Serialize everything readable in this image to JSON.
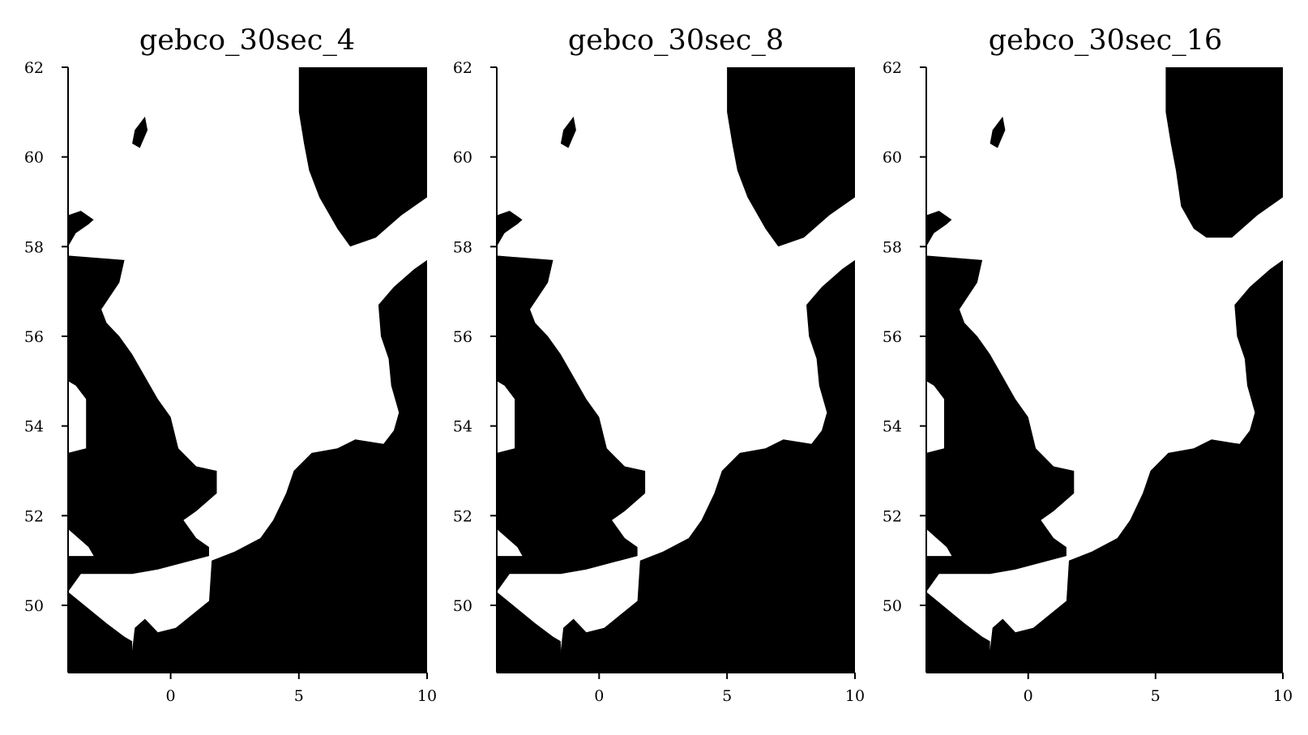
{
  "chart_data": [
    {
      "type": "heatmap",
      "title": "gebco_30sec_4",
      "xlim": [
        -4,
        10
      ],
      "ylim": [
        48.5,
        62
      ],
      "xticks": [
        "0",
        "5",
        "10"
      ],
      "yticks": [
        "50",
        "52",
        "54",
        "56",
        "58",
        "60",
        "62"
      ],
      "grid": false,
      "colors": {
        "land": "#000000",
        "sea": "#ffffff"
      },
      "land_polygons": [
        [
          [
            -4,
            48.5
          ],
          [
            -4,
            50.3
          ],
          [
            -3.5,
            50.7
          ],
          [
            -1.5,
            50.7
          ],
          [
            -0.5,
            50.8
          ],
          [
            1.5,
            51.1
          ],
          [
            1.5,
            51.3
          ],
          [
            1.0,
            51.5
          ],
          [
            0.5,
            51.9
          ],
          [
            1.0,
            52.1
          ],
          [
            1.8,
            52.5
          ],
          [
            1.8,
            53.0
          ],
          [
            1.0,
            53.1
          ],
          [
            0.3,
            53.5
          ],
          [
            0,
            54.2
          ],
          [
            -0.5,
            54.6
          ],
          [
            -1.0,
            55.1
          ],
          [
            -1.5,
            55.6
          ],
          [
            -2.0,
            56.0
          ],
          [
            -2.5,
            56.3
          ],
          [
            -2.7,
            56.6
          ],
          [
            -2.0,
            57.2
          ],
          [
            -1.8,
            57.7
          ],
          [
            -4,
            57.8
          ],
          [
            -4,
            55.0
          ],
          [
            -3.7,
            54.9
          ],
          [
            -3.3,
            54.6
          ],
          [
            -3.3,
            53.5
          ],
          [
            -4,
            53.4
          ],
          [
            -4,
            51.7
          ],
          [
            -3.2,
            51.3
          ],
          [
            -3.0,
            51.1
          ],
          [
            -4,
            51.1
          ],
          [
            -4,
            50.3
          ],
          [
            -2.5,
            49.6
          ],
          [
            -1.8,
            49.3
          ],
          [
            -1.5,
            49.2
          ],
          [
            -1.5,
            48.5
          ]
        ],
        [
          [
            -4,
            58.0
          ],
          [
            -3.7,
            58.3
          ],
          [
            -3.2,
            58.5
          ],
          [
            -3.0,
            58.6
          ],
          [
            -3.5,
            58.8
          ],
          [
            -4,
            58.7
          ]
        ],
        [
          [
            -1.6,
            48.5
          ],
          [
            -1.4,
            49.5
          ],
          [
            -1.0,
            49.7
          ],
          [
            -0.5,
            49.4
          ],
          [
            0.2,
            49.5
          ],
          [
            1.5,
            50.1
          ],
          [
            1.6,
            51.0
          ],
          [
            2.5,
            51.2
          ],
          [
            3.5,
            51.5
          ],
          [
            4.0,
            51.9
          ],
          [
            4.5,
            52.5
          ],
          [
            4.8,
            53.0
          ],
          [
            5.5,
            53.4
          ],
          [
            6.5,
            53.5
          ],
          [
            7.2,
            53.7
          ],
          [
            8.3,
            53.6
          ],
          [
            8.7,
            53.9
          ],
          [
            8.9,
            54.3
          ],
          [
            8.6,
            54.9
          ],
          [
            8.5,
            55.5
          ],
          [
            8.2,
            56.0
          ],
          [
            8.1,
            56.7
          ],
          [
            8.7,
            57.1
          ],
          [
            9.5,
            57.5
          ],
          [
            10,
            57.7
          ],
          [
            10,
            48.5
          ]
        ],
        [
          [
            5.0,
            62
          ],
          [
            5.0,
            61.0
          ],
          [
            5.2,
            60.3
          ],
          [
            5.4,
            59.7
          ],
          [
            5.8,
            59.1
          ],
          [
            6.5,
            58.4
          ],
          [
            7.0,
            58.0
          ],
          [
            8.0,
            58.2
          ],
          [
            9.0,
            58.7
          ],
          [
            10,
            59.1
          ],
          [
            10,
            62
          ]
        ],
        [
          [
            -1.4,
            60.6
          ],
          [
            -1.0,
            60.9
          ],
          [
            -0.9,
            60.6
          ],
          [
            -1.2,
            60.2
          ],
          [
            -1.5,
            60.3
          ]
        ]
      ]
    },
    {
      "type": "heatmap",
      "title": "gebco_30sec_8",
      "xlim": [
        -4,
        10
      ],
      "ylim": [
        48.5,
        62
      ],
      "xticks": [
        "0",
        "5",
        "10"
      ],
      "yticks": [
        "50",
        "52",
        "54",
        "56",
        "58",
        "60",
        "62"
      ],
      "grid": false,
      "colors": {
        "land": "#000000",
        "sea": "#ffffff"
      },
      "land_polygons": [
        [
          [
            -4,
            48.5
          ],
          [
            -4,
            50.3
          ],
          [
            -3.5,
            50.7
          ],
          [
            -1.5,
            50.7
          ],
          [
            -0.5,
            50.8
          ],
          [
            1.5,
            51.1
          ],
          [
            1.5,
            51.3
          ],
          [
            1.0,
            51.5
          ],
          [
            0.5,
            51.9
          ],
          [
            1.0,
            52.1
          ],
          [
            1.8,
            52.5
          ],
          [
            1.8,
            53.0
          ],
          [
            1.0,
            53.1
          ],
          [
            0.3,
            53.5
          ],
          [
            0,
            54.2
          ],
          [
            -0.5,
            54.6
          ],
          [
            -1.0,
            55.1
          ],
          [
            -1.5,
            55.6
          ],
          [
            -2.0,
            56.0
          ],
          [
            -2.5,
            56.3
          ],
          [
            -2.7,
            56.6
          ],
          [
            -2.0,
            57.2
          ],
          [
            -1.8,
            57.7
          ],
          [
            -4,
            57.8
          ],
          [
            -4,
            55.0
          ],
          [
            -3.7,
            54.9
          ],
          [
            -3.3,
            54.6
          ],
          [
            -3.3,
            53.5
          ],
          [
            -4,
            53.4
          ],
          [
            -4,
            51.7
          ],
          [
            -3.2,
            51.3
          ],
          [
            -3.0,
            51.1
          ],
          [
            -4,
            51.1
          ],
          [
            -4,
            50.3
          ],
          [
            -2.5,
            49.6
          ],
          [
            -1.8,
            49.3
          ],
          [
            -1.5,
            49.2
          ],
          [
            -1.5,
            48.5
          ]
        ],
        [
          [
            -4,
            58.0
          ],
          [
            -3.7,
            58.3
          ],
          [
            -3.2,
            58.5
          ],
          [
            -3.0,
            58.6
          ],
          [
            -3.5,
            58.8
          ],
          [
            -4,
            58.7
          ]
        ],
        [
          [
            -1.6,
            48.5
          ],
          [
            -1.4,
            49.5
          ],
          [
            -1.0,
            49.7
          ],
          [
            -0.5,
            49.4
          ],
          [
            0.2,
            49.5
          ],
          [
            1.5,
            50.1
          ],
          [
            1.6,
            51.0
          ],
          [
            2.5,
            51.2
          ],
          [
            3.5,
            51.5
          ],
          [
            4.0,
            51.9
          ],
          [
            4.5,
            52.5
          ],
          [
            4.8,
            53.0
          ],
          [
            5.5,
            53.4
          ],
          [
            6.5,
            53.5
          ],
          [
            7.2,
            53.7
          ],
          [
            8.3,
            53.6
          ],
          [
            8.7,
            53.9
          ],
          [
            8.9,
            54.3
          ],
          [
            8.6,
            54.9
          ],
          [
            8.5,
            55.5
          ],
          [
            8.2,
            56.0
          ],
          [
            8.1,
            56.7
          ],
          [
            8.7,
            57.1
          ],
          [
            9.5,
            57.5
          ],
          [
            10,
            57.7
          ],
          [
            10,
            48.5
          ]
        ],
        [
          [
            5.0,
            62
          ],
          [
            5.0,
            61.0
          ],
          [
            5.2,
            60.3
          ],
          [
            5.4,
            59.7
          ],
          [
            5.8,
            59.1
          ],
          [
            6.5,
            58.4
          ],
          [
            7.0,
            58.0
          ],
          [
            8.0,
            58.2
          ],
          [
            9.0,
            58.7
          ],
          [
            10,
            59.1
          ],
          [
            10,
            62
          ]
        ],
        [
          [
            -1.4,
            60.6
          ],
          [
            -1.0,
            60.9
          ],
          [
            -0.9,
            60.6
          ],
          [
            -1.2,
            60.2
          ],
          [
            -1.5,
            60.3
          ]
        ]
      ]
    },
    {
      "type": "heatmap",
      "title": "gebco_30sec_16",
      "xlim": [
        -4,
        10
      ],
      "ylim": [
        48.5,
        62
      ],
      "xticks": [
        "0",
        "5",
        "10"
      ],
      "yticks": [
        "50",
        "52",
        "54",
        "56",
        "58",
        "60",
        "62"
      ],
      "grid": false,
      "colors": {
        "land": "#000000",
        "sea": "#ffffff"
      },
      "land_polygons": [
        [
          [
            -4,
            48.5
          ],
          [
            -4,
            50.3
          ],
          [
            -3.5,
            50.7
          ],
          [
            -1.5,
            50.7
          ],
          [
            -0.5,
            50.8
          ],
          [
            1.5,
            51.1
          ],
          [
            1.5,
            51.3
          ],
          [
            1.0,
            51.5
          ],
          [
            0.5,
            51.9
          ],
          [
            1.0,
            52.1
          ],
          [
            1.8,
            52.5
          ],
          [
            1.8,
            53.0
          ],
          [
            1.0,
            53.1
          ],
          [
            0.3,
            53.5
          ],
          [
            0,
            54.2
          ],
          [
            -0.5,
            54.6
          ],
          [
            -1.0,
            55.1
          ],
          [
            -1.5,
            55.6
          ],
          [
            -2.0,
            56.0
          ],
          [
            -2.5,
            56.3
          ],
          [
            -2.7,
            56.6
          ],
          [
            -2.0,
            57.2
          ],
          [
            -1.8,
            57.7
          ],
          [
            -4,
            57.8
          ],
          [
            -4,
            55.0
          ],
          [
            -3.7,
            54.9
          ],
          [
            -3.3,
            54.6
          ],
          [
            -3.3,
            53.5
          ],
          [
            -4,
            53.4
          ],
          [
            -4,
            51.7
          ],
          [
            -3.2,
            51.3
          ],
          [
            -3.0,
            51.1
          ],
          [
            -4,
            51.1
          ],
          [
            -4,
            50.3
          ],
          [
            -2.5,
            49.6
          ],
          [
            -1.8,
            49.3
          ],
          [
            -1.5,
            49.2
          ],
          [
            -1.5,
            48.5
          ]
        ],
        [
          [
            -4,
            58.0
          ],
          [
            -3.7,
            58.3
          ],
          [
            -3.2,
            58.5
          ],
          [
            -3.0,
            58.6
          ],
          [
            -3.5,
            58.8
          ],
          [
            -4,
            58.7
          ]
        ],
        [
          [
            -1.6,
            48.5
          ],
          [
            -1.4,
            49.5
          ],
          [
            -1.0,
            49.7
          ],
          [
            -0.5,
            49.4
          ],
          [
            0.2,
            49.5
          ],
          [
            1.5,
            50.1
          ],
          [
            1.6,
            51.0
          ],
          [
            2.5,
            51.2
          ],
          [
            3.5,
            51.5
          ],
          [
            4.0,
            51.9
          ],
          [
            4.5,
            52.5
          ],
          [
            4.8,
            53.0
          ],
          [
            5.5,
            53.4
          ],
          [
            6.5,
            53.5
          ],
          [
            7.2,
            53.7
          ],
          [
            8.3,
            53.6
          ],
          [
            8.7,
            53.9
          ],
          [
            8.9,
            54.3
          ],
          [
            8.6,
            54.9
          ],
          [
            8.5,
            55.5
          ],
          [
            8.2,
            56.0
          ],
          [
            8.1,
            56.7
          ],
          [
            8.7,
            57.1
          ],
          [
            9.5,
            57.5
          ],
          [
            10,
            57.7
          ],
          [
            10,
            48.5
          ]
        ],
        [
          [
            5.4,
            62
          ],
          [
            5.4,
            61.0
          ],
          [
            5.6,
            60.3
          ],
          [
            5.8,
            59.7
          ],
          [
            6.0,
            58.9
          ],
          [
            6.5,
            58.4
          ],
          [
            7.0,
            58.2
          ],
          [
            8.0,
            58.2
          ],
          [
            9.0,
            58.7
          ],
          [
            10,
            59.1
          ],
          [
            10,
            62
          ]
        ],
        [
          [
            -1.4,
            60.6
          ],
          [
            -1.0,
            60.9
          ],
          [
            -0.9,
            60.6
          ],
          [
            -1.2,
            60.2
          ],
          [
            -1.5,
            60.3
          ]
        ]
      ]
    }
  ]
}
